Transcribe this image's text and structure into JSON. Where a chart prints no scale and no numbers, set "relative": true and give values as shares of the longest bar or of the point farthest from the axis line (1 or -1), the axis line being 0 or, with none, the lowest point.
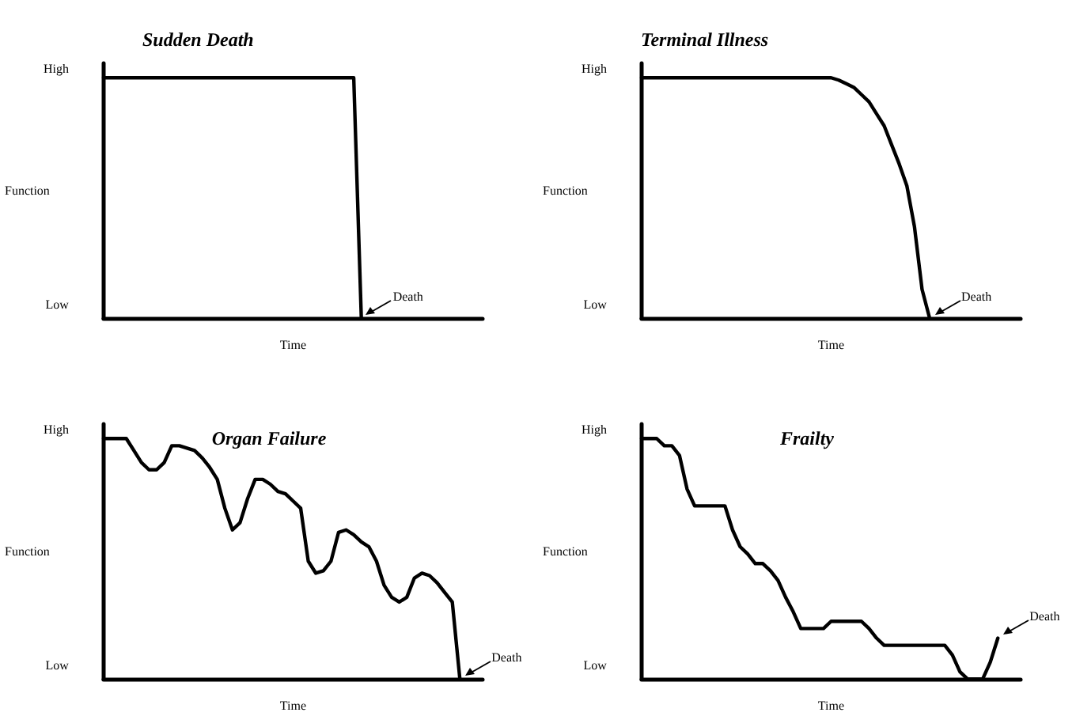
{
  "chart_data": [
    {
      "type": "line",
      "title": "Sudden Death",
      "xlabel": "Time",
      "ylabel": "Function",
      "relative": true,
      "grid": false,
      "marker": "none",
      "line_style": "solid",
      "categories": [
        null,
        null,
        null,
        null,
        null,
        null,
        null,
        null,
        null,
        null,
        null,
        null,
        null,
        null,
        null,
        null,
        null,
        null,
        null,
        null,
        null,
        null,
        null,
        null,
        null,
        null,
        null,
        null,
        null,
        null,
        null,
        null,
        null,
        null,
        null,
        null,
        null,
        null,
        null,
        null,
        null,
        null,
        null,
        null,
        null,
        null,
        null,
        null,
        null,
        null,
        null
      ],
      "series": [
        {
          "color": "#000000",
          "values": [
            1,
            1,
            1,
            1,
            1,
            1,
            1,
            1,
            1,
            1,
            1,
            1,
            1,
            1,
            1,
            1,
            1,
            1,
            1,
            1,
            1,
            1,
            1,
            1,
            1,
            1,
            1,
            1,
            1,
            1,
            1,
            1,
            1,
            1,
            0,
            null,
            null,
            null,
            null,
            null,
            null,
            null,
            null,
            null,
            null,
            null,
            null,
            null,
            null,
            null,
            null
          ]
        }
      ],
      "annotations": [
        "High",
        "Low",
        "Death"
      ]
    },
    {
      "type": "line",
      "title": "Terminal Illness",
      "xlabel": "Time",
      "ylabel": "Function",
      "relative": true,
      "grid": false,
      "marker": "none",
      "line_style": "solid",
      "categories": [
        null,
        null,
        null,
        null,
        null,
        null,
        null,
        null,
        null,
        null,
        null,
        null,
        null,
        null,
        null,
        null,
        null,
        null,
        null,
        null,
        null,
        null,
        null,
        null,
        null,
        null,
        null,
        null,
        null,
        null,
        null,
        null,
        null,
        null,
        null,
        null,
        null,
        null,
        null,
        null,
        null,
        null,
        null,
        null,
        null,
        null,
        null,
        null,
        null,
        null,
        null
      ],
      "series": [
        {
          "color": "#000000",
          "values": [
            1,
            1,
            1,
            1,
            1,
            1,
            1,
            1,
            1,
            1,
            1,
            1,
            1,
            1,
            1,
            1,
            1,
            1,
            1,
            1,
            1,
            1,
            1,
            1,
            1,
            1,
            0.99,
            0.975,
            0.96,
            0.93,
            0.9,
            0.85,
            0.8,
            0.72,
            0.64,
            0.55,
            0.38,
            0.12,
            0,
            null,
            null,
            null,
            null,
            null,
            null,
            null,
            null,
            null,
            null,
            null,
            null
          ]
        }
      ],
      "annotations": [
        "High",
        "Low",
        "Death"
      ]
    },
    {
      "type": "line",
      "title": "Organ Failure",
      "xlabel": "Time",
      "ylabel": "Function",
      "relative": true,
      "grid": false,
      "marker": "none",
      "line_style": "solid",
      "categories": [
        null,
        null,
        null,
        null,
        null,
        null,
        null,
        null,
        null,
        null,
        null,
        null,
        null,
        null,
        null,
        null,
        null,
        null,
        null,
        null,
        null,
        null,
        null,
        null,
        null,
        null,
        null,
        null,
        null,
        null,
        null,
        null,
        null,
        null,
        null,
        null,
        null,
        null,
        null,
        null,
        null,
        null,
        null,
        null,
        null,
        null,
        null,
        null,
        null,
        null,
        null
      ],
      "series": [
        {
          "color": "#000000",
          "values": [
            1,
            1,
            1,
            1,
            0.95,
            0.9,
            0.87,
            0.87,
            0.9,
            0.97,
            0.97,
            0.96,
            0.95,
            0.92,
            0.88,
            0.83,
            0.71,
            0.62,
            0.65,
            0.75,
            0.83,
            0.83,
            0.81,
            0.78,
            0.77,
            0.74,
            0.71,
            0.49,
            0.44,
            0.45,
            0.49,
            0.61,
            0.62,
            0.6,
            0.57,
            0.55,
            0.49,
            0.39,
            0.34,
            0.32,
            0.34,
            0.42,
            0.44,
            0.43,
            0.4,
            0.36,
            0.32,
            0,
            null,
            null,
            null
          ]
        }
      ],
      "annotations": [
        "High",
        "Low",
        "Death"
      ]
    },
    {
      "type": "line",
      "title": "Frailty",
      "xlabel": "Time",
      "ylabel": "Function",
      "relative": true,
      "grid": false,
      "marker": "none",
      "line_style": "solid",
      "categories": [
        null,
        null,
        null,
        null,
        null,
        null,
        null,
        null,
        null,
        null,
        null,
        null,
        null,
        null,
        null,
        null,
        null,
        null,
        null,
        null,
        null,
        null,
        null,
        null,
        null,
        null,
        null,
        null,
        null,
        null,
        null,
        null,
        null,
        null,
        null,
        null,
        null,
        null,
        null,
        null,
        null,
        null,
        null,
        null,
        null,
        null,
        null,
        null,
        null,
        null,
        null
      ],
      "series": [
        {
          "color": "#000000",
          "values": [
            1,
            1,
            1,
            0.97,
            0.97,
            0.93,
            0.79,
            0.72,
            0.72,
            0.72,
            0.72,
            0.72,
            0.62,
            0.55,
            0.52,
            0.48,
            0.48,
            0.45,
            0.41,
            0.34,
            0.28,
            0.21,
            0.21,
            0.21,
            0.21,
            0.24,
            0.24,
            0.24,
            0.24,
            0.24,
            0.21,
            0.17,
            0.14,
            0.14,
            0.14,
            0.14,
            0.14,
            0.14,
            0.14,
            0.14,
            0.14,
            0.1,
            0.03,
            0,
            0,
            0,
            0.07,
            0.17,
            null,
            null,
            null
          ]
        }
      ],
      "annotations": [
        "High",
        "Low",
        "Death"
      ]
    }
  ]
}
